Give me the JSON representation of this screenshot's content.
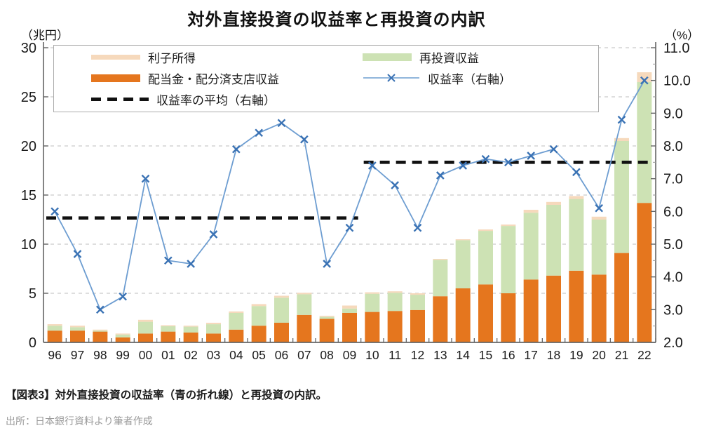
{
  "title": "対外直接投資の収益率と再投資の内訳",
  "axis_units": {
    "left": "（兆円）",
    "right": "（%）"
  },
  "legend": {
    "interest": "利子所得",
    "dividend": "配当金・配分済支店収益",
    "average": "収益率の平均（右軸）",
    "reinvest": "再投資収益",
    "rate": "収益率（右軸）"
  },
  "caption": "【図表3】対外直接投資の収益率（青の折れ線）と再投資の内訳。",
  "source": "出所：日本銀行資料より筆者作成",
  "colors": {
    "dividend_bar": "#e5761e",
    "reinvest_bar": "#cde2b4",
    "interest_bar": "#f6d9bc",
    "rate_line": "#6d9dd1",
    "rate_marker": "#3a72b4",
    "average_line": "#111111",
    "grid": "#c9c9c9",
    "axis": "#666666",
    "tick_label": "#1a1a1a"
  },
  "chart_data": {
    "type": "bar",
    "subtype": "stacked-bar-with-line-overlay",
    "title": "対外直接投資の収益率と再投資の内訳",
    "xlabel": "",
    "ylabel_left": "（兆円）",
    "ylabel_right": "（%）",
    "grid": "horizontal dashed",
    "legend_position": "top inside",
    "categories": [
      "96",
      "97",
      "98",
      "99",
      "00",
      "01",
      "02",
      "03",
      "04",
      "05",
      "06",
      "07",
      "08",
      "09",
      "10",
      "11",
      "12",
      "13",
      "14",
      "15",
      "16",
      "17",
      "18",
      "19",
      "20",
      "21",
      "22"
    ],
    "bar_series": [
      {
        "key": "dividend",
        "name": "配当金・配分済支店収益",
        "axis": "left",
        "stack_order": 1,
        "color": "#e5761e",
        "values": [
          1.2,
          1.2,
          1.1,
          0.5,
          0.9,
          1.1,
          1.0,
          0.9,
          1.3,
          1.7,
          2.0,
          2.8,
          2.4,
          3.0,
          3.1,
          3.2,
          3.3,
          4.7,
          5.5,
          5.9,
          5.0,
          6.4,
          6.8,
          7.3,
          6.9,
          9.1,
          14.2
        ]
      },
      {
        "key": "reinvest",
        "name": "再投資収益",
        "axis": "left",
        "stack_order": 2,
        "color": "#cde2b4",
        "values": [
          0.5,
          0.35,
          0.1,
          0.3,
          1.2,
          0.55,
          0.6,
          0.95,
          1.7,
          2.0,
          2.55,
          2.1,
          0.2,
          0.45,
          1.85,
          1.85,
          1.55,
          3.7,
          4.9,
          5.45,
          6.85,
          6.8,
          7.2,
          7.3,
          5.6,
          11.4,
          12.3
        ]
      },
      {
        "key": "interest",
        "name": "利子所得",
        "axis": "left",
        "stack_order": 3,
        "color": "#f6d9bc",
        "values": [
          0.15,
          0.15,
          0.1,
          0.1,
          0.2,
          0.1,
          0.1,
          0.15,
          0.15,
          0.2,
          0.2,
          0.15,
          0.1,
          0.3,
          0.15,
          0.15,
          0.15,
          0.1,
          0.1,
          0.15,
          0.15,
          0.3,
          0.3,
          0.3,
          0.3,
          0.3,
          1.0
        ]
      }
    ],
    "line_series": [
      {
        "key": "rate",
        "name": "収益率（右軸）",
        "axis": "right",
        "color": "#6d9dd1",
        "marker": "x",
        "values": [
          6.0,
          4.7,
          3.0,
          3.4,
          7.0,
          4.5,
          4.4,
          5.3,
          7.9,
          8.4,
          8.7,
          8.2,
          4.4,
          5.5,
          7.4,
          6.8,
          5.5,
          7.1,
          7.4,
          7.6,
          7.5,
          7.7,
          7.9,
          7.2,
          6.1,
          8.8,
          10.0
        ]
      }
    ],
    "average_segments": [
      {
        "name": "収益率の平均（右軸）",
        "axis": "right",
        "value": 5.8,
        "from": "96",
        "to": "09"
      },
      {
        "name": "収益率の平均（右軸）",
        "axis": "right",
        "value": 7.5,
        "from": "10",
        "to": "22"
      }
    ],
    "left_axis": {
      "min": 0,
      "max": 30,
      "ticks": [
        0,
        5,
        10,
        15,
        20,
        25,
        30
      ]
    },
    "right_axis": {
      "min": 2.0,
      "max": 11.0,
      "ticks": [
        "2.0",
        "3.0",
        "4.0",
        "5.0",
        "6.0",
        "7.0",
        "8.0",
        "9.0",
        "10.0",
        "11.0"
      ]
    }
  }
}
